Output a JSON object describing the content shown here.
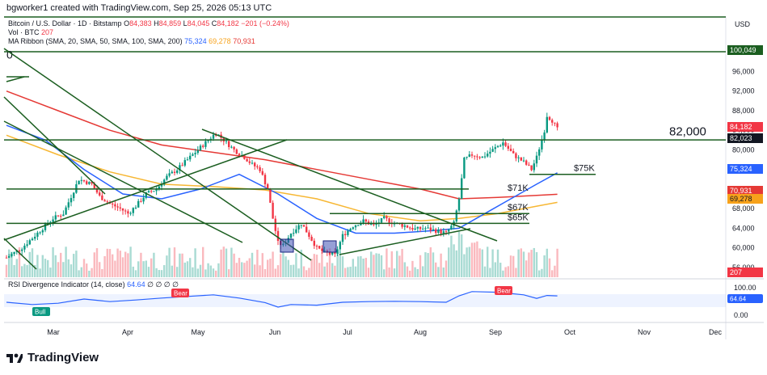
{
  "header": {
    "author": "bgworker1 created with TradingView.com, Sep 25, 2026 05:13 UTC"
  },
  "legend": {
    "symbol": "Bitcoin / U.S. Dollar · 1D · Bitstamp",
    "open_label": "O",
    "open": "84,383",
    "high_label": "H",
    "high": "84,859",
    "low_label": "L",
    "low": "84,045",
    "close_label": "C",
    "close": "84,182",
    "change": "−201 (−0.24%)",
    "vol_label": "Vol · BTC",
    "vol": "207",
    "ma_label": "MA Ribbon (SMA, 20, SMA, 50, SMA, 100, SMA, 200)",
    "ma_values": [
      "75,324",
      "69,278",
      "70,931"
    ]
  },
  "rsi_legend": {
    "label": "RSI Divergence Indicator (14, close)",
    "value": "64.64",
    "extras": "∅ ∅ ∅ ∅"
  },
  "brand": {
    "name": "TradingView"
  },
  "chart_data": {
    "type": "candlestick",
    "currency": "USD",
    "price_ticks": [
      56000,
      60000,
      64000,
      68000,
      72000,
      76000,
      80000,
      84000,
      88000,
      92000,
      96000
    ],
    "price_tick_labels": [
      "56,000",
      "60,000",
      "64,000",
      "68,000",
      "72,000",
      "76,000",
      "80,000",
      "84,000",
      "88,000",
      "92,000",
      "96,000"
    ],
    "months": [
      "Mar",
      "Apr",
      "May",
      "Jun",
      "Jul",
      "Aug",
      "Sep",
      "Oct",
      "Nov",
      "Dec"
    ],
    "rsi_ticks": [
      "100.00",
      "0.00"
    ],
    "levels": [
      {
        "price": 100049,
        "label": "100,049"
      },
      {
        "price": 82023,
        "label": "82,023"
      },
      {
        "price": 72000,
        "label": ""
      },
      {
        "price": 65000,
        "label": ""
      }
    ],
    "annotations": [
      {
        "text": "82,000",
        "price": 82000
      },
      {
        "text": "$75K",
        "price": 75000
      },
      {
        "text": "$71K",
        "price": 71000
      },
      {
        "text": "$67K",
        "price": 67000
      },
      {
        "text": "$65K",
        "price": 65000
      },
      {
        "text": "0",
        "price": 98000
      }
    ],
    "price_badges": [
      {
        "label": "84,182",
        "color": "#f23645"
      },
      {
        "label": "82,023",
        "color": "#131722"
      },
      {
        "label": "75,324",
        "color": "#2962ff"
      },
      {
        "label": "70,931",
        "color": "#e53935"
      },
      {
        "label": "69,278",
        "color": "#f7a21b"
      },
      {
        "label": "207",
        "color": "#f23645"
      }
    ],
    "rsi_badges": [
      {
        "label": "Bull",
        "color": "#089981"
      },
      {
        "label": "Bear",
        "color": "#f23645"
      },
      {
        "label": "Bear",
        "color": "#f23645"
      },
      {
        "label": "64.64",
        "color": "#2962ff"
      }
    ],
    "close_path": [
      [
        0,
        58000
      ],
      [
        6,
        60000
      ],
      [
        12,
        63000
      ],
      [
        18,
        66000
      ],
      [
        22,
        67000
      ],
      [
        28,
        74000
      ],
      [
        33,
        73000
      ],
      [
        36,
        70500
      ],
      [
        40,
        69000
      ],
      [
        44,
        68000
      ],
      [
        47,
        67000
      ],
      [
        50,
        68500
      ],
      [
        54,
        71000
      ],
      [
        58,
        72000
      ],
      [
        62,
        74500
      ],
      [
        66,
        76000
      ],
      [
        70,
        78000
      ],
      [
        74,
        80000
      ],
      [
        78,
        82000
      ],
      [
        81,
        83500
      ],
      [
        84,
        82000
      ],
      [
        88,
        80000
      ],
      [
        92,
        78500
      ],
      [
        95,
        77000
      ],
      [
        98,
        76000
      ],
      [
        101,
        72000
      ],
      [
        103,
        66000
      ],
      [
        105,
        61000
      ],
      [
        107,
        60500
      ],
      [
        110,
        63000
      ],
      [
        114,
        65000
      ],
      [
        117,
        62500
      ],
      [
        120,
        60000
      ],
      [
        123,
        59000
      ],
      [
        127,
        58500
      ],
      [
        130,
        62500
      ],
      [
        134,
        64500
      ],
      [
        138,
        65500
      ],
      [
        142,
        64500
      ],
      [
        146,
        66000
      ],
      [
        150,
        65000
      ],
      [
        154,
        64500
      ],
      [
        158,
        63800
      ],
      [
        162,
        64000
      ],
      [
        166,
        63500
      ],
      [
        170,
        63000
      ],
      [
        173,
        65000
      ],
      [
        175,
        70000
      ],
      [
        177,
        78000
      ],
      [
        180,
        79000
      ],
      [
        184,
        78500
      ],
      [
        188,
        80000
      ],
      [
        192,
        81500
      ],
      [
        196,
        79000
      ],
      [
        200,
        77500
      ],
      [
        203,
        76000
      ],
      [
        205,
        78500
      ],
      [
        208,
        84000
      ],
      [
        209,
        87000
      ],
      [
        211,
        86000
      ],
      [
        213,
        84182
      ]
    ],
    "sma20": [
      [
        0,
        85000
      ],
      [
        15,
        82000
      ],
      [
        30,
        76000
      ],
      [
        45,
        71000
      ],
      [
        60,
        70000
      ],
      [
        75,
        72000
      ],
      [
        90,
        75000
      ],
      [
        105,
        71000
      ],
      [
        120,
        66000
      ],
      [
        135,
        63000
      ],
      [
        150,
        63000
      ],
      [
        165,
        63500
      ],
      [
        175,
        64000
      ],
      [
        185,
        67000
      ],
      [
        195,
        70000
      ],
      [
        205,
        73000
      ],
      [
        213,
        75324
      ]
    ],
    "sma50": [
      [
        0,
        83000
      ],
      [
        20,
        79000
      ],
      [
        40,
        75500
      ],
      [
        60,
        73000
      ],
      [
        80,
        72500
      ],
      [
        100,
        71800
      ],
      [
        120,
        70000
      ],
      [
        140,
        67000
      ],
      [
        160,
        65500
      ],
      [
        175,
        66000
      ],
      [
        190,
        67000
      ],
      [
        205,
        68500
      ],
      [
        213,
        69278
      ]
    ],
    "sma200": [
      [
        0,
        92000
      ],
      [
        20,
        88000
      ],
      [
        40,
        84000
      ],
      [
        60,
        81000
      ],
      [
        80,
        79500
      ],
      [
        100,
        78000
      ],
      [
        120,
        76000
      ],
      [
        140,
        74000
      ],
      [
        160,
        72000
      ],
      [
        175,
        70000
      ],
      [
        190,
        70300
      ],
      [
        205,
        70700
      ],
      [
        213,
        70931
      ]
    ],
    "rsi": [
      [
        0,
        45
      ],
      [
        10,
        38
      ],
      [
        20,
        42
      ],
      [
        30,
        55
      ],
      [
        40,
        47
      ],
      [
        50,
        52
      ],
      [
        60,
        58
      ],
      [
        70,
        63
      ],
      [
        80,
        68
      ],
      [
        90,
        58
      ],
      [
        100,
        44
      ],
      [
        105,
        30
      ],
      [
        110,
        38
      ],
      [
        120,
        36
      ],
      [
        130,
        45
      ],
      [
        140,
        47
      ],
      [
        150,
        48
      ],
      [
        160,
        47
      ],
      [
        170,
        45
      ],
      [
        175,
        65
      ],
      [
        180,
        78
      ],
      [
        190,
        76
      ],
      [
        200,
        68
      ],
      [
        205,
        57
      ],
      [
        209,
        66
      ],
      [
        213,
        64.64
      ]
    ]
  }
}
